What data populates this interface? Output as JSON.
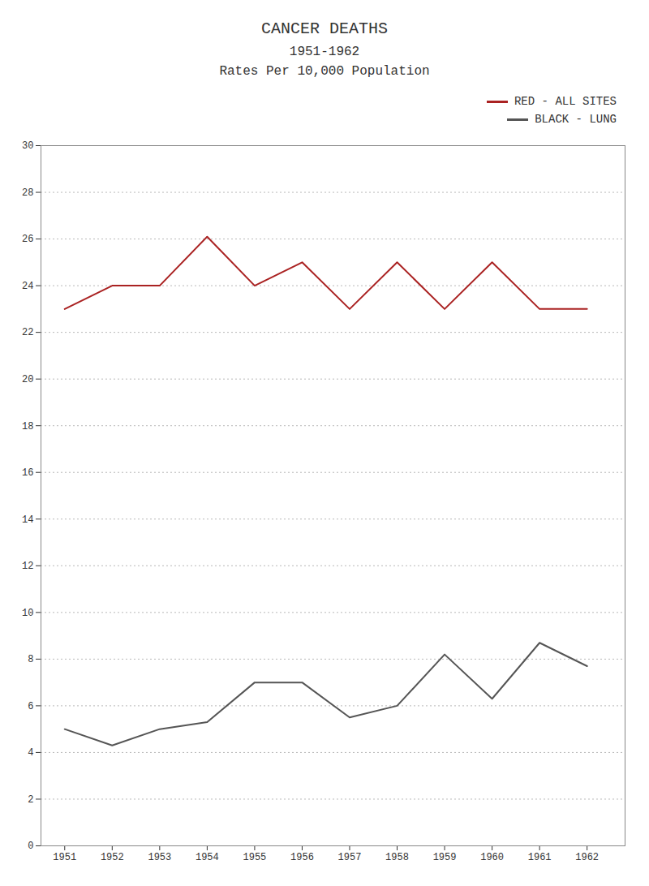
{
  "chart_data": {
    "type": "line",
    "title": "CANCER DEATHS",
    "subtitle": [
      "1951-1962",
      "Rates Per 10,000 Population"
    ],
    "x": [
      1951,
      1952,
      1953,
      1954,
      1955,
      1956,
      1957,
      1958,
      1959,
      1960,
      1961,
      1962
    ],
    "series": [
      {
        "name": "RED - ALL SITES",
        "color": "#aa2222",
        "values": [
          23.0,
          24.0,
          24.0,
          26.1,
          24.0,
          25.0,
          23.0,
          25.0,
          23.0,
          25.0,
          23.0,
          23.0
        ]
      },
      {
        "name": "BLACK - LUNG",
        "color": "#555555",
        "values": [
          5.0,
          4.3,
          5.0,
          5.3,
          7.0,
          7.0,
          5.5,
          6.0,
          8.2,
          6.3,
          8.7,
          7.7
        ]
      }
    ],
    "xlim": [
      1950.5,
      1962.8
    ],
    "xticks": [
      1951,
      1952,
      1953,
      1954,
      1955,
      1956,
      1957,
      1958,
      1959,
      1960,
      1961,
      1962
    ],
    "ylim": [
      0,
      30
    ],
    "yticks": [
      0,
      2,
      4,
      6,
      8,
      10,
      12,
      14,
      16,
      18,
      20,
      22,
      24,
      26,
      28,
      30
    ],
    "grid": true,
    "legend": "upper right"
  }
}
